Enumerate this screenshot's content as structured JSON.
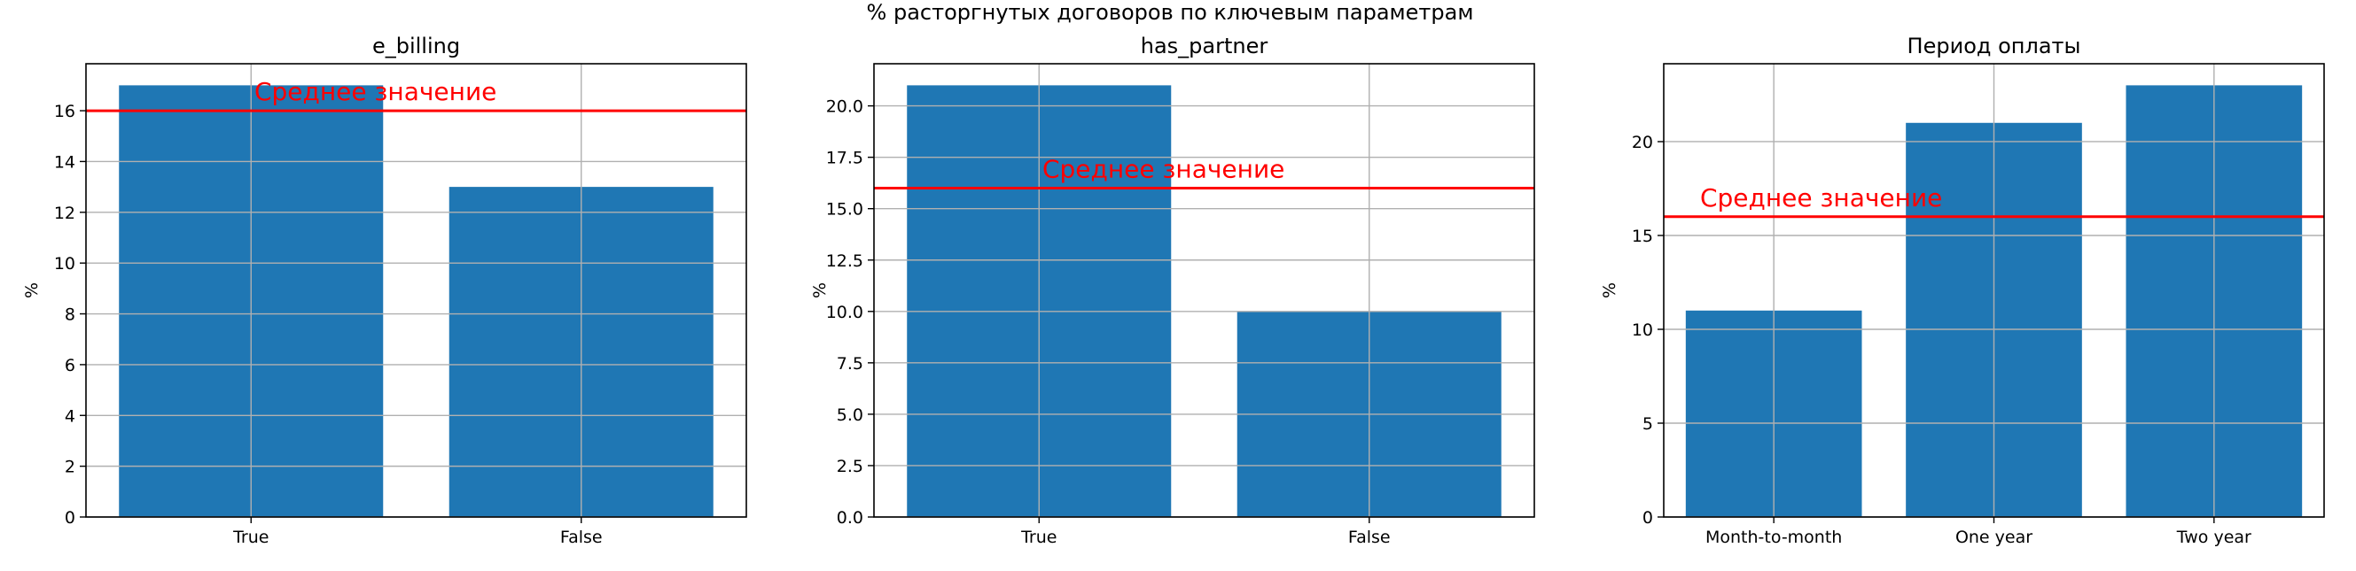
{
  "suptitle": "% расторгнутых договоров по ключевым параметрам",
  "chart_data": [
    {
      "type": "bar",
      "title": "e_billing",
      "xlabel": "",
      "ylabel": "%",
      "categories": [
        "True",
        "False"
      ],
      "values": [
        17,
        13
      ],
      "ylim": [
        0,
        17.85
      ],
      "yticks": [
        0,
        2,
        4,
        6,
        8,
        10,
        12,
        14,
        16
      ],
      "ytick_labels": [
        "0",
        "2",
        "4",
        "6",
        "8",
        "10",
        "12",
        "14",
        "16"
      ],
      "grid": true,
      "reference_line": {
        "value": 16,
        "label": "Среднее значение",
        "color": "#ff0000"
      }
    },
    {
      "type": "bar",
      "title": "has_partner",
      "xlabel": "",
      "ylabel": "%",
      "categories": [
        "True",
        "False"
      ],
      "values": [
        21,
        10
      ],
      "ylim": [
        0,
        22.05
      ],
      "yticks": [
        0,
        2.5,
        5,
        7.5,
        10,
        12.5,
        15,
        17.5,
        20
      ],
      "ytick_labels": [
        "0.0",
        "2.5",
        "5.0",
        "7.5",
        "10.0",
        "12.5",
        "15.0",
        "17.5",
        "20.0"
      ],
      "grid": true,
      "reference_line": {
        "value": 16,
        "label": "Среднее значение",
        "color": "#ff0000"
      }
    },
    {
      "type": "bar",
      "title": "Период оплаты",
      "xlabel": "",
      "ylabel": "%",
      "categories": [
        "Month-to-month",
        "One year",
        "Two year"
      ],
      "values": [
        11,
        21,
        23
      ],
      "ylim": [
        0,
        24.15
      ],
      "yticks": [
        0,
        5,
        10,
        15,
        20
      ],
      "ytick_labels": [
        "0",
        "5",
        "10",
        "15",
        "20"
      ],
      "grid": true,
      "reference_line": {
        "value": 16,
        "label": "Среднее значение",
        "color": "#ff0000"
      }
    }
  ],
  "colors": {
    "bar": "#1f77b4",
    "grid": "#b0b0b0",
    "axes": "#000000",
    "reference_line": "#ff0000"
  }
}
